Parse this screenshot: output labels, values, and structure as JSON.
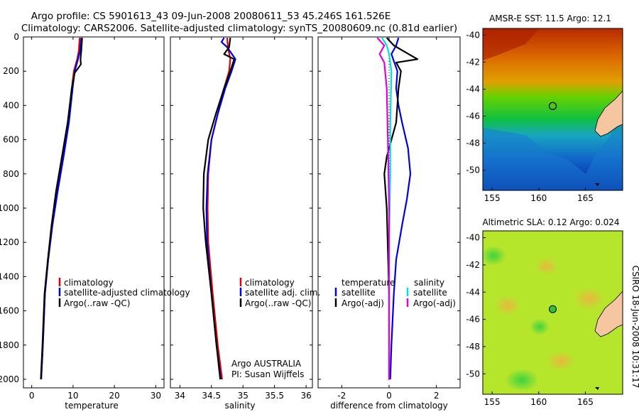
{
  "header": {
    "line1": "Argo profile: CS 5901613_43 09-Jun-2008 20080611_53 45.246S 161.526E",
    "line2": "Climatology: CARS2006. Satellite-adjusted climatology: synTS_20080609.nc (0.81d earlier)"
  },
  "credit": "CSIRO 18-Jun-2008 10:31:17",
  "annotation": {
    "line1": "Argo AUSTRALIA",
    "line2": "PI: Susan Wijffels"
  },
  "colors": {
    "climatology": "#e00000",
    "satellite": "#0000e0",
    "argo": "#000000",
    "salinity_satellite": "#00e0e0",
    "salinity_argo": "#e000e0",
    "station_marker": "#2ec42e"
  },
  "chart_data": [
    {
      "id": "temperature",
      "type": "line",
      "xlabel": "temperature",
      "ylabel": "",
      "xlim": [
        -2,
        32
      ],
      "ylim": [
        2050,
        0
      ],
      "xticks": [
        "0",
        "10",
        "20",
        "30"
      ],
      "yticks": [
        "0",
        "200",
        "400",
        "600",
        "800",
        "1000",
        "1200",
        "1400",
        "1600",
        "1800",
        "2000"
      ],
      "legend": [
        "climatology",
        "satellite-adjusted climatology",
        "Argo(..raw -QC)"
      ],
      "series": [
        {
          "name": "climatology",
          "color": "#e00000",
          "x": [
            11.6,
            11.4,
            11.0,
            10.2,
            9.7,
            8.8,
            7.5,
            6.2,
            5.0,
            4.0,
            3.2,
            2.7,
            2.3
          ],
          "y": [
            5,
            80,
            130,
            200,
            300,
            500,
            700,
            900,
            1100,
            1300,
            1500,
            1800,
            2000
          ]
        },
        {
          "name": "satellite-adjusted climatology",
          "color": "#0000e0",
          "x": [
            12.0,
            11.7,
            11.2,
            10.4,
            9.9,
            9.0,
            7.7,
            6.3,
            5.0,
            4.0,
            3.2,
            2.7,
            2.3
          ],
          "y": [
            5,
            80,
            130,
            200,
            300,
            500,
            700,
            900,
            1100,
            1300,
            1500,
            1800,
            2000
          ]
        },
        {
          "name": "Argo(..raw -QC)",
          "color": "#000000",
          "x": [
            12.2,
            12.0,
            11.8,
            11.9,
            10.4,
            9.7,
            8.7,
            7.3,
            5.9,
            4.8,
            3.9,
            3.1,
            2.6,
            2.2
          ],
          "y": [
            5,
            80,
            130,
            160,
            210,
            300,
            500,
            700,
            900,
            1100,
            1300,
            1500,
            1800,
            2000
          ]
        }
      ]
    },
    {
      "id": "salinity",
      "type": "line",
      "xlabel": "salinity",
      "ylabel": "",
      "xlim": [
        33.85,
        36.1
      ],
      "ylim": [
        2050,
        0
      ],
      "xticks": [
        "34",
        "34.5",
        "35",
        "35.5",
        "36"
      ],
      "legend": [
        "climatology",
        "satellite adj. clim.",
        "Argo(..raw -QC)"
      ],
      "series": [
        {
          "name": "climatology",
          "color": "#e00000",
          "x": [
            34.75,
            34.76,
            34.8,
            34.78,
            34.7,
            34.6,
            34.5,
            34.45,
            34.44,
            34.45,
            34.52,
            34.6,
            34.67
          ],
          "y": [
            5,
            60,
            130,
            200,
            300,
            450,
            600,
            800,
            1000,
            1200,
            1500,
            1800,
            2000
          ]
        },
        {
          "name": "satellite adj. clim.",
          "color": "#0000e0",
          "x": [
            34.7,
            34.66,
            34.75,
            34.88,
            34.82,
            34.72,
            34.6,
            34.5,
            34.44,
            34.42,
            34.43,
            34.5,
            34.58,
            34.65
          ],
          "y": [
            5,
            30,
            60,
            130,
            200,
            300,
            450,
            600,
            800,
            1000,
            1200,
            1500,
            1800,
            2000
          ]
        },
        {
          "name": "Argo(..raw -QC)",
          "color": "#000000",
          "x": [
            34.8,
            34.78,
            34.7,
            34.86,
            34.8,
            34.7,
            34.57,
            34.45,
            34.38,
            34.37,
            34.41,
            34.5,
            34.58,
            34.64
          ],
          "y": [
            5,
            60,
            100,
            130,
            200,
            300,
            450,
            600,
            800,
            1000,
            1200,
            1500,
            1800,
            2000
          ]
        }
      ]
    },
    {
      "id": "difference",
      "type": "line",
      "xlabel": "difference from climatology",
      "ylabel": "",
      "xlim": [
        -3,
        3
      ],
      "ylim": [
        2050,
        0
      ],
      "xticks": [
        "-2",
        "0",
        "2"
      ],
      "legend_temperature": [
        "temperature",
        "satellite",
        "Argo(-adj)"
      ],
      "legend_salinity": [
        "salinity",
        "satellite",
        "Argo(-adj)"
      ],
      "series": [
        {
          "name": "temperature satellite",
          "color": "#0000e0",
          "x": [
            0.4,
            0.3,
            0.1,
            0.35,
            0.3,
            0.4,
            0.55,
            0.8,
            0.9,
            0.75,
            0.55,
            0.3,
            0.2,
            0.1,
            0.05
          ],
          "y": [
            5,
            50,
            100,
            200,
            300,
            400,
            500,
            650,
            800,
            950,
            1100,
            1300,
            1500,
            1800,
            2000
          ]
        },
        {
          "name": "temperature Argo(-adj)",
          "color": "#000000",
          "x": [
            -0.1,
            0.2,
            0.7,
            1.2,
            0.3,
            0.5,
            0.4,
            0.3,
            -0.1,
            -0.2,
            -0.1,
            0.0,
            0.0
          ],
          "y": [
            5,
            50,
            90,
            130,
            150,
            200,
            300,
            500,
            700,
            800,
            1000,
            1500,
            2000
          ]
        },
        {
          "name": "salinity satellite",
          "color": "#00e0e0",
          "x": [
            -0.3,
            -0.1,
            0.0,
            0.1,
            0.05,
            0.05,
            0.0,
            0.0,
            0.0
          ],
          "y": [
            5,
            50,
            100,
            200,
            500,
            800,
            1200,
            1600,
            2000
          ]
        },
        {
          "name": "salinity Argo(-adj)",
          "color": "#e000e0",
          "x": [
            -0.5,
            -0.2,
            -0.4,
            -0.2,
            -0.1,
            -0.05,
            0.0,
            0.0,
            0.0
          ],
          "y": [
            5,
            50,
            100,
            150,
            300,
            600,
            1000,
            1500,
            2000
          ]
        }
      ]
    },
    {
      "id": "sst_map",
      "type": "heatmap",
      "title": "AMSR-E SST: 11.5 Argo: 12.1",
      "xlim": [
        154,
        169
      ],
      "ylim": [
        -51.5,
        -39.5
      ],
      "xticks": [
        "155",
        "160",
        "165"
      ],
      "yticks": [
        "-40",
        "-42",
        "-44",
        "-46",
        "-48",
        "-50"
      ],
      "marker": {
        "lon": 161.5,
        "lat": -45.25
      }
    },
    {
      "id": "sla_map",
      "type": "heatmap",
      "title": "Altimetric SLA: 0.12 Argo: 0.024",
      "xlim": [
        154,
        169
      ],
      "ylim": [
        -51.5,
        -39.5
      ],
      "xticks": [
        "155",
        "160",
        "165"
      ],
      "yticks": [
        "-40",
        "-42",
        "-44",
        "-46",
        "-48",
        "-50"
      ],
      "marker": {
        "lon": 161.5,
        "lat": -45.25
      }
    }
  ]
}
